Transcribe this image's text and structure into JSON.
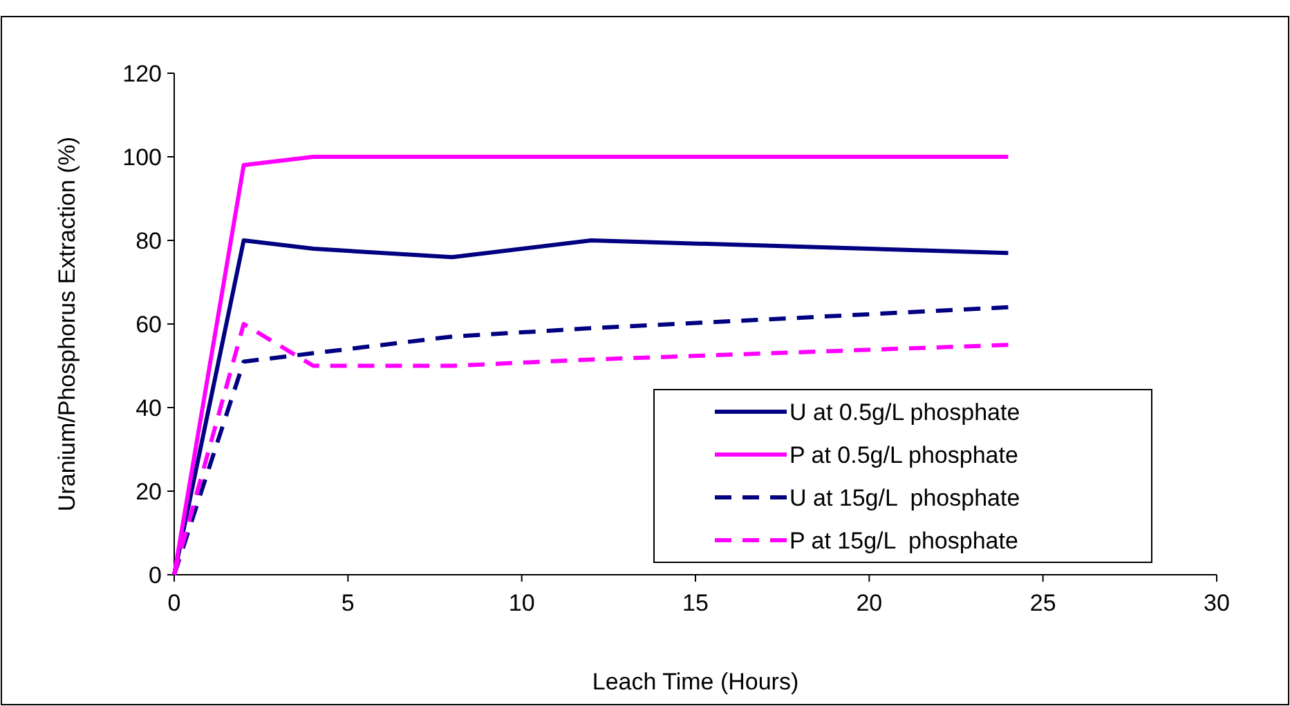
{
  "chart_data": {
    "type": "line",
    "xlabel": "Leach Time (Hours)",
    "ylabel": "Uranium/Phosphorus Extraction  (%)",
    "x": [
      0,
      2,
      4,
      8,
      12,
      24
    ],
    "series": [
      {
        "name": "U at 0.5g/L phosphate",
        "color": "#000080",
        "line_style": "solid",
        "values": [
          0,
          80,
          78,
          76,
          80,
          77
        ]
      },
      {
        "name": "P at 0.5g/L phosphate",
        "color": "#ff00ff",
        "line_style": "solid",
        "values": [
          0,
          98,
          100,
          100,
          100,
          100
        ]
      },
      {
        "name": "U at 15g/L  phosphate",
        "color": "#000080",
        "line_style": "dashed",
        "values": [
          0,
          51,
          53,
          57,
          59,
          64
        ]
      },
      {
        "name": "P at 15g/L  phosphate",
        "color": "#ff00ff",
        "line_style": "dashed",
        "values": [
          0,
          60,
          50,
          50,
          51.5,
          55
        ]
      }
    ],
    "xlim": [
      0,
      30
    ],
    "xticks": [
      0,
      5,
      10,
      15,
      20,
      25,
      30
    ],
    "ylim": [
      0,
      120
    ],
    "yticks": [
      0,
      20,
      40,
      60,
      80,
      100,
      120
    ],
    "grid": false,
    "legend": "bottom right"
  }
}
